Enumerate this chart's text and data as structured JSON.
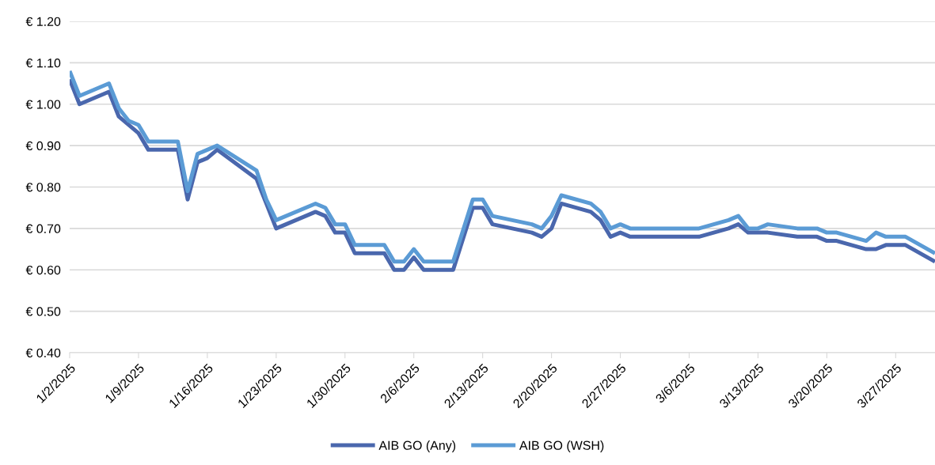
{
  "chart_data": {
    "type": "line",
    "x": [
      "2025-01-02",
      "2025-01-03",
      "2025-01-06",
      "2025-01-07",
      "2025-01-08",
      "2025-01-09",
      "2025-01-10",
      "2025-01-13",
      "2025-01-14",
      "2025-01-15",
      "2025-01-16",
      "2025-01-17",
      "2025-01-21",
      "2025-01-22",
      "2025-01-23",
      "2025-01-27",
      "2025-01-28",
      "2025-01-29",
      "2025-01-30",
      "2025-01-31",
      "2025-02-03",
      "2025-02-04",
      "2025-02-05",
      "2025-02-06",
      "2025-02-07",
      "2025-02-10",
      "2025-02-12",
      "2025-02-13",
      "2025-02-14",
      "2025-02-18",
      "2025-02-19",
      "2025-02-20",
      "2025-02-21",
      "2025-02-24",
      "2025-02-25",
      "2025-02-26",
      "2025-02-27",
      "2025-02-28",
      "2025-03-07",
      "2025-03-10",
      "2025-03-11",
      "2025-03-12",
      "2025-03-13",
      "2025-03-14",
      "2025-03-17",
      "2025-03-19",
      "2025-03-20",
      "2025-03-21",
      "2025-03-24",
      "2025-03-25",
      "2025-03-26",
      "2025-03-28",
      "2025-03-31"
    ],
    "series": [
      {
        "name": "AIB GO (Any)",
        "color": "#4a67ad",
        "values": [
          1.06,
          1.0,
          1.03,
          0.97,
          0.95,
          0.93,
          0.89,
          0.89,
          0.77,
          0.86,
          0.87,
          0.89,
          0.82,
          0.76,
          0.7,
          0.74,
          0.73,
          0.69,
          0.69,
          0.64,
          0.64,
          0.6,
          0.6,
          0.63,
          0.6,
          0.6,
          0.75,
          0.75,
          0.71,
          0.69,
          0.68,
          0.7,
          0.76,
          0.74,
          0.72,
          0.68,
          0.69,
          0.68,
          0.68,
          0.7,
          0.71,
          0.69,
          0.69,
          0.69,
          0.68,
          0.68,
          0.67,
          0.67,
          0.65,
          0.65,
          0.66,
          0.66,
          0.62
        ]
      },
      {
        "name": "AIB GO (WSH)",
        "color": "#5b9bd5",
        "values": [
          1.08,
          1.02,
          1.05,
          0.99,
          0.96,
          0.95,
          0.91,
          0.91,
          0.79,
          0.88,
          0.89,
          0.9,
          0.84,
          0.77,
          0.72,
          0.76,
          0.75,
          0.71,
          0.71,
          0.66,
          0.66,
          0.62,
          0.62,
          0.65,
          0.62,
          0.62,
          0.77,
          0.77,
          0.73,
          0.71,
          0.7,
          0.73,
          0.78,
          0.76,
          0.74,
          0.7,
          0.71,
          0.7,
          0.7,
          0.72,
          0.73,
          0.7,
          0.7,
          0.71,
          0.7,
          0.7,
          0.69,
          0.69,
          0.67,
          0.69,
          0.68,
          0.68,
          0.64
        ]
      }
    ],
    "xlim": [
      "2025-01-02",
      "2025-03-31"
    ],
    "xticks": [
      {
        "value": "2025-01-02",
        "label": "1/2/2025"
      },
      {
        "value": "2025-01-09",
        "label": "1/9/2025"
      },
      {
        "value": "2025-01-16",
        "label": "1/16/2025"
      },
      {
        "value": "2025-01-23",
        "label": "1/23/2025"
      },
      {
        "value": "2025-01-30",
        "label": "1/30/2025"
      },
      {
        "value": "2025-02-06",
        "label": "2/6/2025"
      },
      {
        "value": "2025-02-13",
        "label": "2/13/2025"
      },
      {
        "value": "2025-02-20",
        "label": "2/20/2025"
      },
      {
        "value": "2025-02-27",
        "label": "2/27/2025"
      },
      {
        "value": "2025-03-06",
        "label": "3/6/2025"
      },
      {
        "value": "2025-03-13",
        "label": "3/13/2025"
      },
      {
        "value": "2025-03-20",
        "label": "3/20/2025"
      },
      {
        "value": "2025-03-27",
        "label": "3/27/2025"
      }
    ],
    "ylim": [
      0.4,
      1.2
    ],
    "yticks": [
      {
        "value": 0.4,
        "label": "€ 0.40"
      },
      {
        "value": 0.5,
        "label": "€ 0.50"
      },
      {
        "value": 0.6,
        "label": "€ 0.60"
      },
      {
        "value": 0.7,
        "label": "€ 0.70"
      },
      {
        "value": 0.8,
        "label": "€ 0.80"
      },
      {
        "value": 0.9,
        "label": "€ 0.90"
      },
      {
        "value": 1.0,
        "label": "€ 1.00"
      },
      {
        "value": 1.1,
        "label": "€ 1.10"
      },
      {
        "value": 1.2,
        "label": "€ 1.20"
      }
    ],
    "grid": "y",
    "legend": "bottom",
    "marker": "none",
    "line_style": "solid"
  }
}
